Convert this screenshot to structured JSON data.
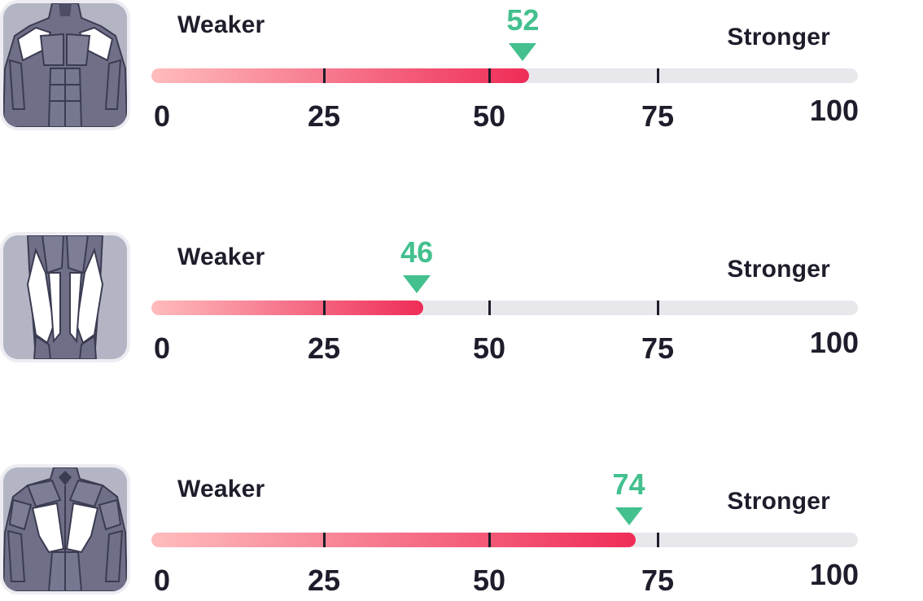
{
  "labels": {
    "weaker": "Weaker",
    "stronger": "Stronger"
  },
  "scale": [
    "0",
    "25",
    "50",
    "75",
    "100"
  ],
  "colors": {
    "marker": "#43c08e",
    "fill_end": "#ef2d57",
    "fill_start": "#ffbcbc",
    "track": "#e8e8ec"
  },
  "rows": [
    {
      "icon": "chest-front-muscles-icon",
      "score": 52,
      "fill_percent": 53.5
    },
    {
      "icon": "legs-front-muscles-icon",
      "score": 46,
      "fill_percent": 38.5
    },
    {
      "icon": "back-muscles-icon",
      "score": 74,
      "fill_percent": 68.5
    }
  ]
}
